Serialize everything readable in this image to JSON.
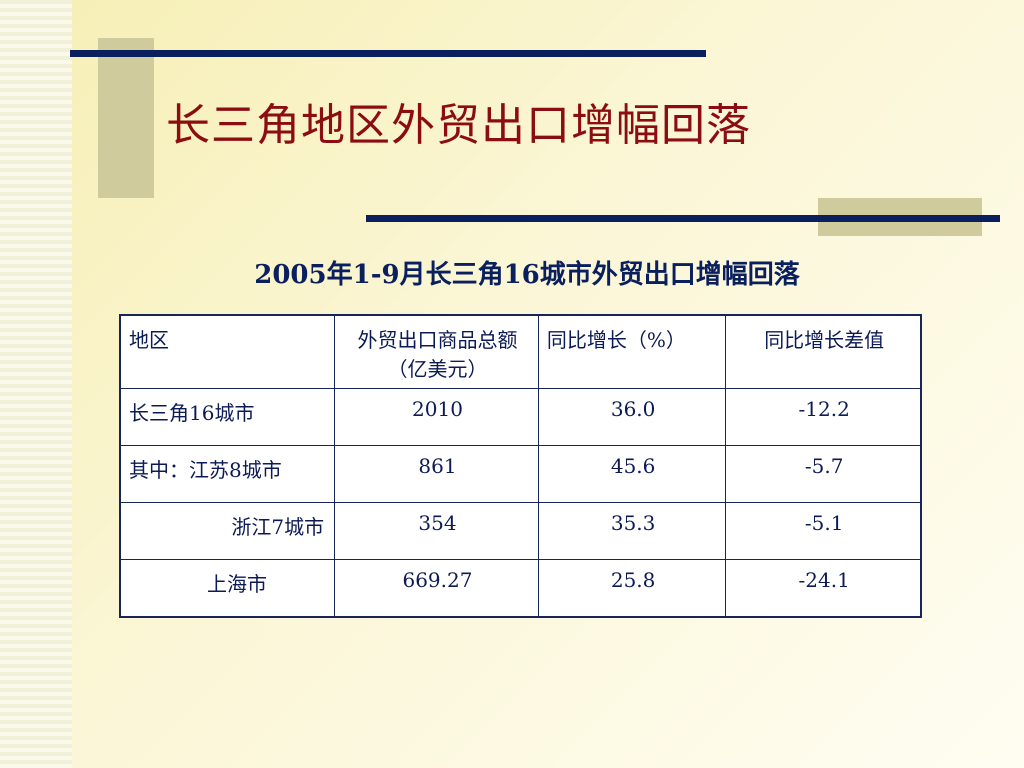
{
  "slide": {
    "title": "长三角地区外贸出口增幅回落",
    "subtitle": "2005年1-9月长三角16城市外贸出口增幅回落"
  },
  "table": {
    "headers": [
      "地区",
      "外贸出口商品总额（亿美元）",
      "同比增长（%）",
      "同比增长差值"
    ],
    "rows": [
      [
        "长三角16城市",
        "2010",
        "36.0",
        "-12.2"
      ],
      [
        "其中：江苏8城市",
        "861",
        "45.6",
        "-5.7"
      ],
      [
        "浙江7城市",
        "354",
        "35.3",
        "-5.1"
      ],
      [
        "上海市",
        "669.27",
        "25.8",
        "-24.1"
      ]
    ]
  },
  "colors": {
    "title": "#8b0d12",
    "navy": "#0a1f5e",
    "accent_block": "#cfcb9c"
  }
}
